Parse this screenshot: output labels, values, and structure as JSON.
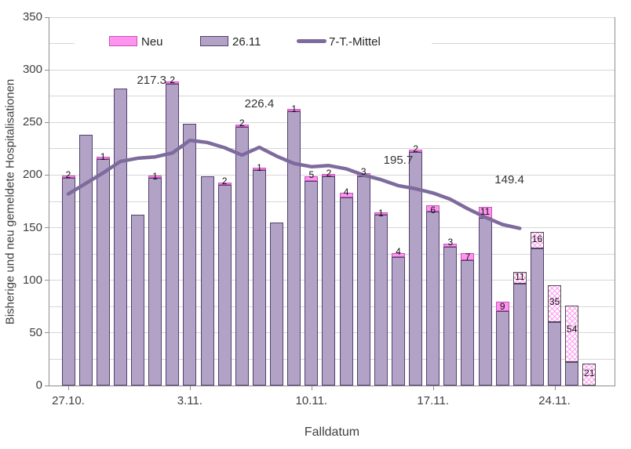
{
  "chart_data": {
    "type": "bar",
    "title": "",
    "ylabel": "Bisherige und neu gemeldete Hospitalisationen",
    "xlabel": "Falldatum",
    "ylim": [
      0,
      350
    ],
    "ytick_step": 50,
    "grid_step": 25,
    "grid_on": true,
    "legend_position": "top",
    "categories": [
      "27.10.",
      "28.10.",
      "29.10.",
      "30.10.",
      "31.10.",
      "1.11.",
      "2.11.",
      "3.11.",
      "4.11.",
      "5.11.",
      "6.11.",
      "7.11.",
      "8.11.",
      "9.11.",
      "10.11.",
      "11.11.",
      "12.11.",
      "13.11.",
      "14.11.",
      "15.11.",
      "16.11.",
      "17.11.",
      "18.11.",
      "19.11.",
      "20.11.",
      "21.11.",
      "22.11.",
      "23.11.",
      "24.11.",
      "25.11.",
      "26.11."
    ],
    "x_tick_labels": [
      {
        "label": "27.10.",
        "day": 0
      },
      {
        "label": "3.11.",
        "day": 7
      },
      {
        "label": "10.11.",
        "day": 14
      },
      {
        "label": "17.11.",
        "day": 21
      },
      {
        "label": "24.11.",
        "day": 28
      }
    ],
    "series": [
      {
        "name": "26.11",
        "type": "bar",
        "role": "previously-reported",
        "values": [
          197,
          238,
          215,
          282,
          162,
          197,
          287,
          249,
          199,
          191,
          246,
          205,
          155,
          261,
          194,
          199,
          179,
          199,
          162,
          122,
          222,
          165,
          132,
          119,
          159,
          71,
          97,
          130,
          60,
          22,
          0
        ]
      },
      {
        "name": "Neu",
        "type": "bar",
        "role": "newly-reported",
        "stacked_on": "26.11",
        "values": [
          2,
          0,
          1,
          0,
          0,
          1,
          2,
          0,
          0,
          2,
          2,
          1,
          0,
          1,
          5,
          2,
          4,
          3,
          1,
          4,
          2,
          6,
          3,
          7,
          11,
          9,
          11,
          16,
          35,
          54,
          21
        ],
        "hatched_from_index": 26
      }
    ],
    "stacked_totals": [
      199,
      238,
      216,
      282,
      162,
      198,
      289,
      249,
      199,
      193,
      248,
      206,
      155,
      262,
      199,
      201,
      183,
      202,
      163,
      126,
      224,
      171,
      135,
      126,
      170,
      80,
      108,
      146,
      95,
      76,
      21
    ],
    "bar_value_labels": "new counts shown at top of each bar with Neu > 0",
    "line_series": {
      "name": "7-T.-Mittel",
      "values": [
        182,
        192,
        202,
        213,
        216,
        217.3,
        221,
        233,
        231,
        226,
        219,
        226.4,
        218,
        211,
        208,
        209,
        206,
        200,
        195.7,
        190,
        187,
        183,
        177,
        168,
        160,
        153,
        149.4
      ]
    },
    "annotations": [
      {
        "text": "217.3",
        "day": 4.8,
        "value": 290
      },
      {
        "text": "226.4",
        "day": 11.0,
        "value": 267
      },
      {
        "text": "195.7",
        "day": 19.0,
        "value": 214
      },
      {
        "text": "149.4",
        "day": 25.4,
        "value": 195
      }
    ],
    "legend": [
      {
        "label": "Neu",
        "swatch": "pink-box"
      },
      {
        "label": "26.11",
        "swatch": "purple-box"
      },
      {
        "label": "7-T.-Mittel",
        "swatch": "line"
      }
    ],
    "yticks": [
      "0",
      "50",
      "100",
      "150",
      "200",
      "250",
      "300",
      "350"
    ],
    "colors": {
      "bar_fill": "#b2a2c6",
      "bar_border": "#54406e",
      "new_fill": "#ff94ee",
      "new_border": "#c653bc",
      "hatch_line": "#ff9bf0",
      "hatch_border": "#4d4d4d",
      "line_color": "#7e6b9d",
      "grid_color": "#d6d6d6",
      "axis_color": "#8e8e8e",
      "text_color": "#3f3f3f",
      "background": "#ffffff"
    }
  }
}
